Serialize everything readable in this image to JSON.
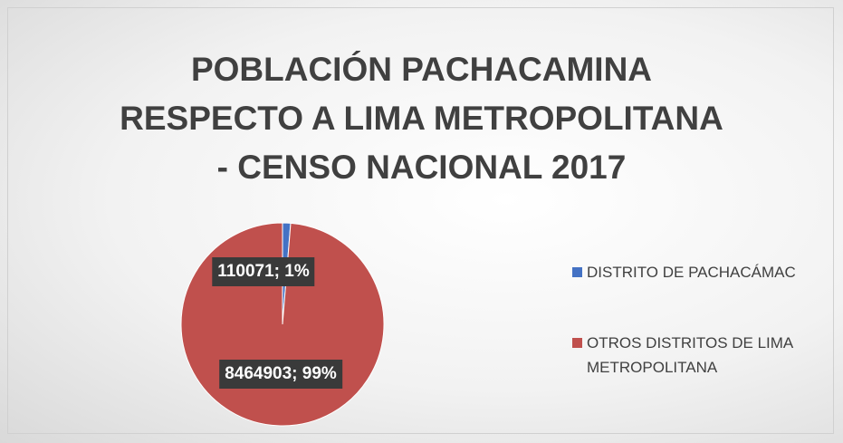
{
  "chart_data": {
    "type": "pie",
    "title": [
      "POBLACIÓN PACHACAMINA",
      "RESPECTO A LIMA METROPOLITANA",
      "- CENSO NACIONAL 2017"
    ],
    "categories": [
      "DISTRITO DE PACHACÁMAC",
      "OTROS DISTRITOS DE LIMA METROPOLITANA"
    ],
    "values": [
      110071,
      8464903
    ],
    "value_labels": [
      "110071; 1%",
      "8464903; 99%"
    ],
    "colors": [
      "#4472c4",
      "#c0504d"
    ],
    "legend": "right"
  }
}
